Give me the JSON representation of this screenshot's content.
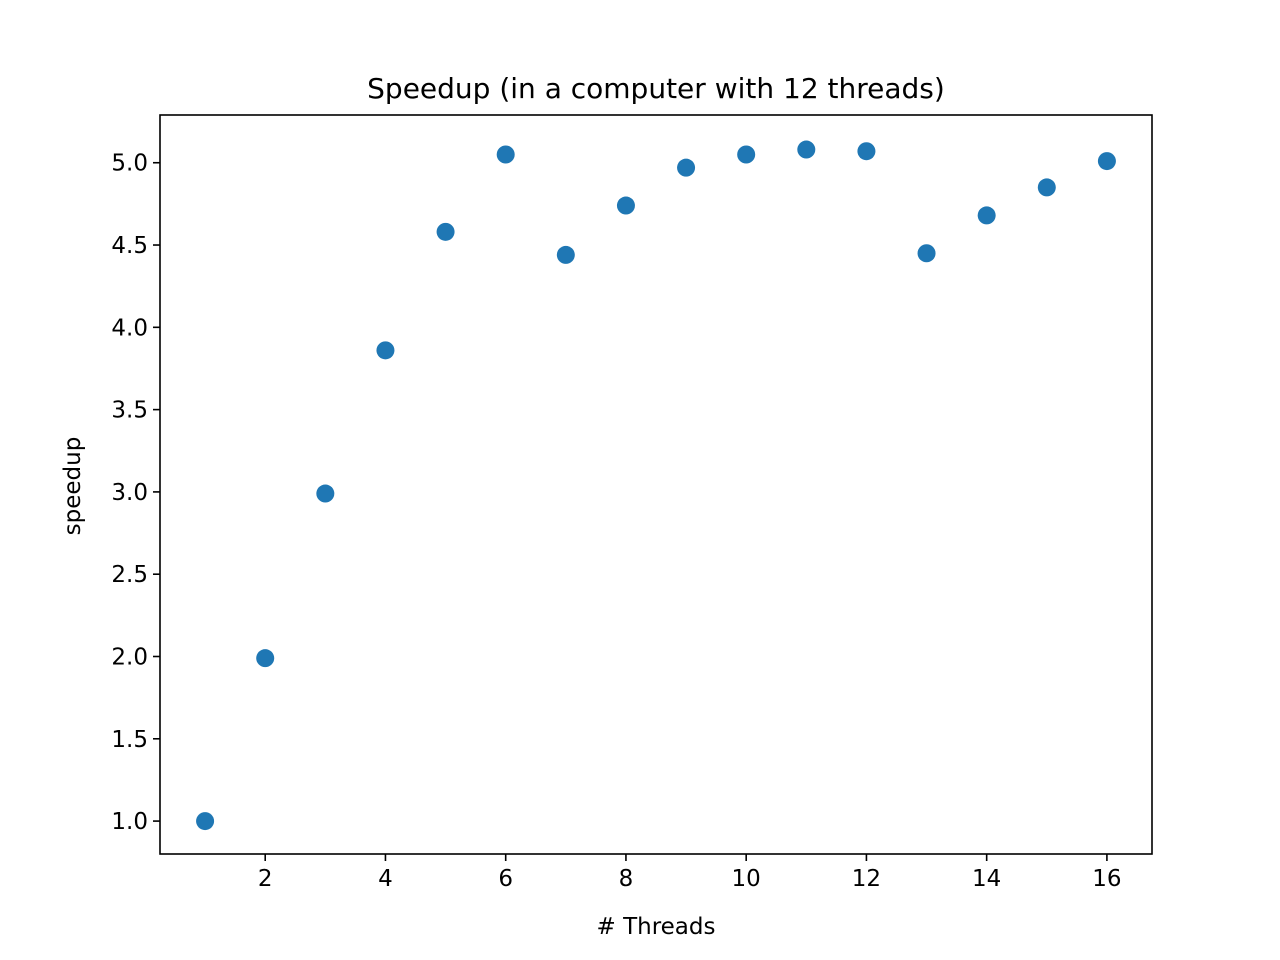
{
  "chart_data": {
    "type": "scatter",
    "title": "Speedup (in a computer with 12 threads)",
    "xlabel": "# Threads",
    "ylabel": "speedup",
    "x": [
      1,
      2,
      3,
      4,
      5,
      6,
      7,
      8,
      9,
      10,
      11,
      12,
      13,
      14,
      15,
      16
    ],
    "y": [
      1.0,
      1.99,
      2.99,
      3.86,
      4.58,
      5.05,
      4.44,
      4.74,
      4.97,
      5.05,
      5.08,
      5.07,
      4.45,
      4.68,
      4.85,
      5.01
    ],
    "xlim": [
      0.25,
      16.75
    ],
    "ylim": [
      0.8,
      5.29
    ],
    "xticks": [
      "2",
      "4",
      "6",
      "8",
      "10",
      "12",
      "14",
      "16"
    ],
    "yticks": [
      "1.0",
      "1.5",
      "2.0",
      "2.5",
      "3.0",
      "3.5",
      "4.0",
      "4.5",
      "5.0"
    ],
    "grid": false,
    "marker_color": "#1f77b4"
  }
}
